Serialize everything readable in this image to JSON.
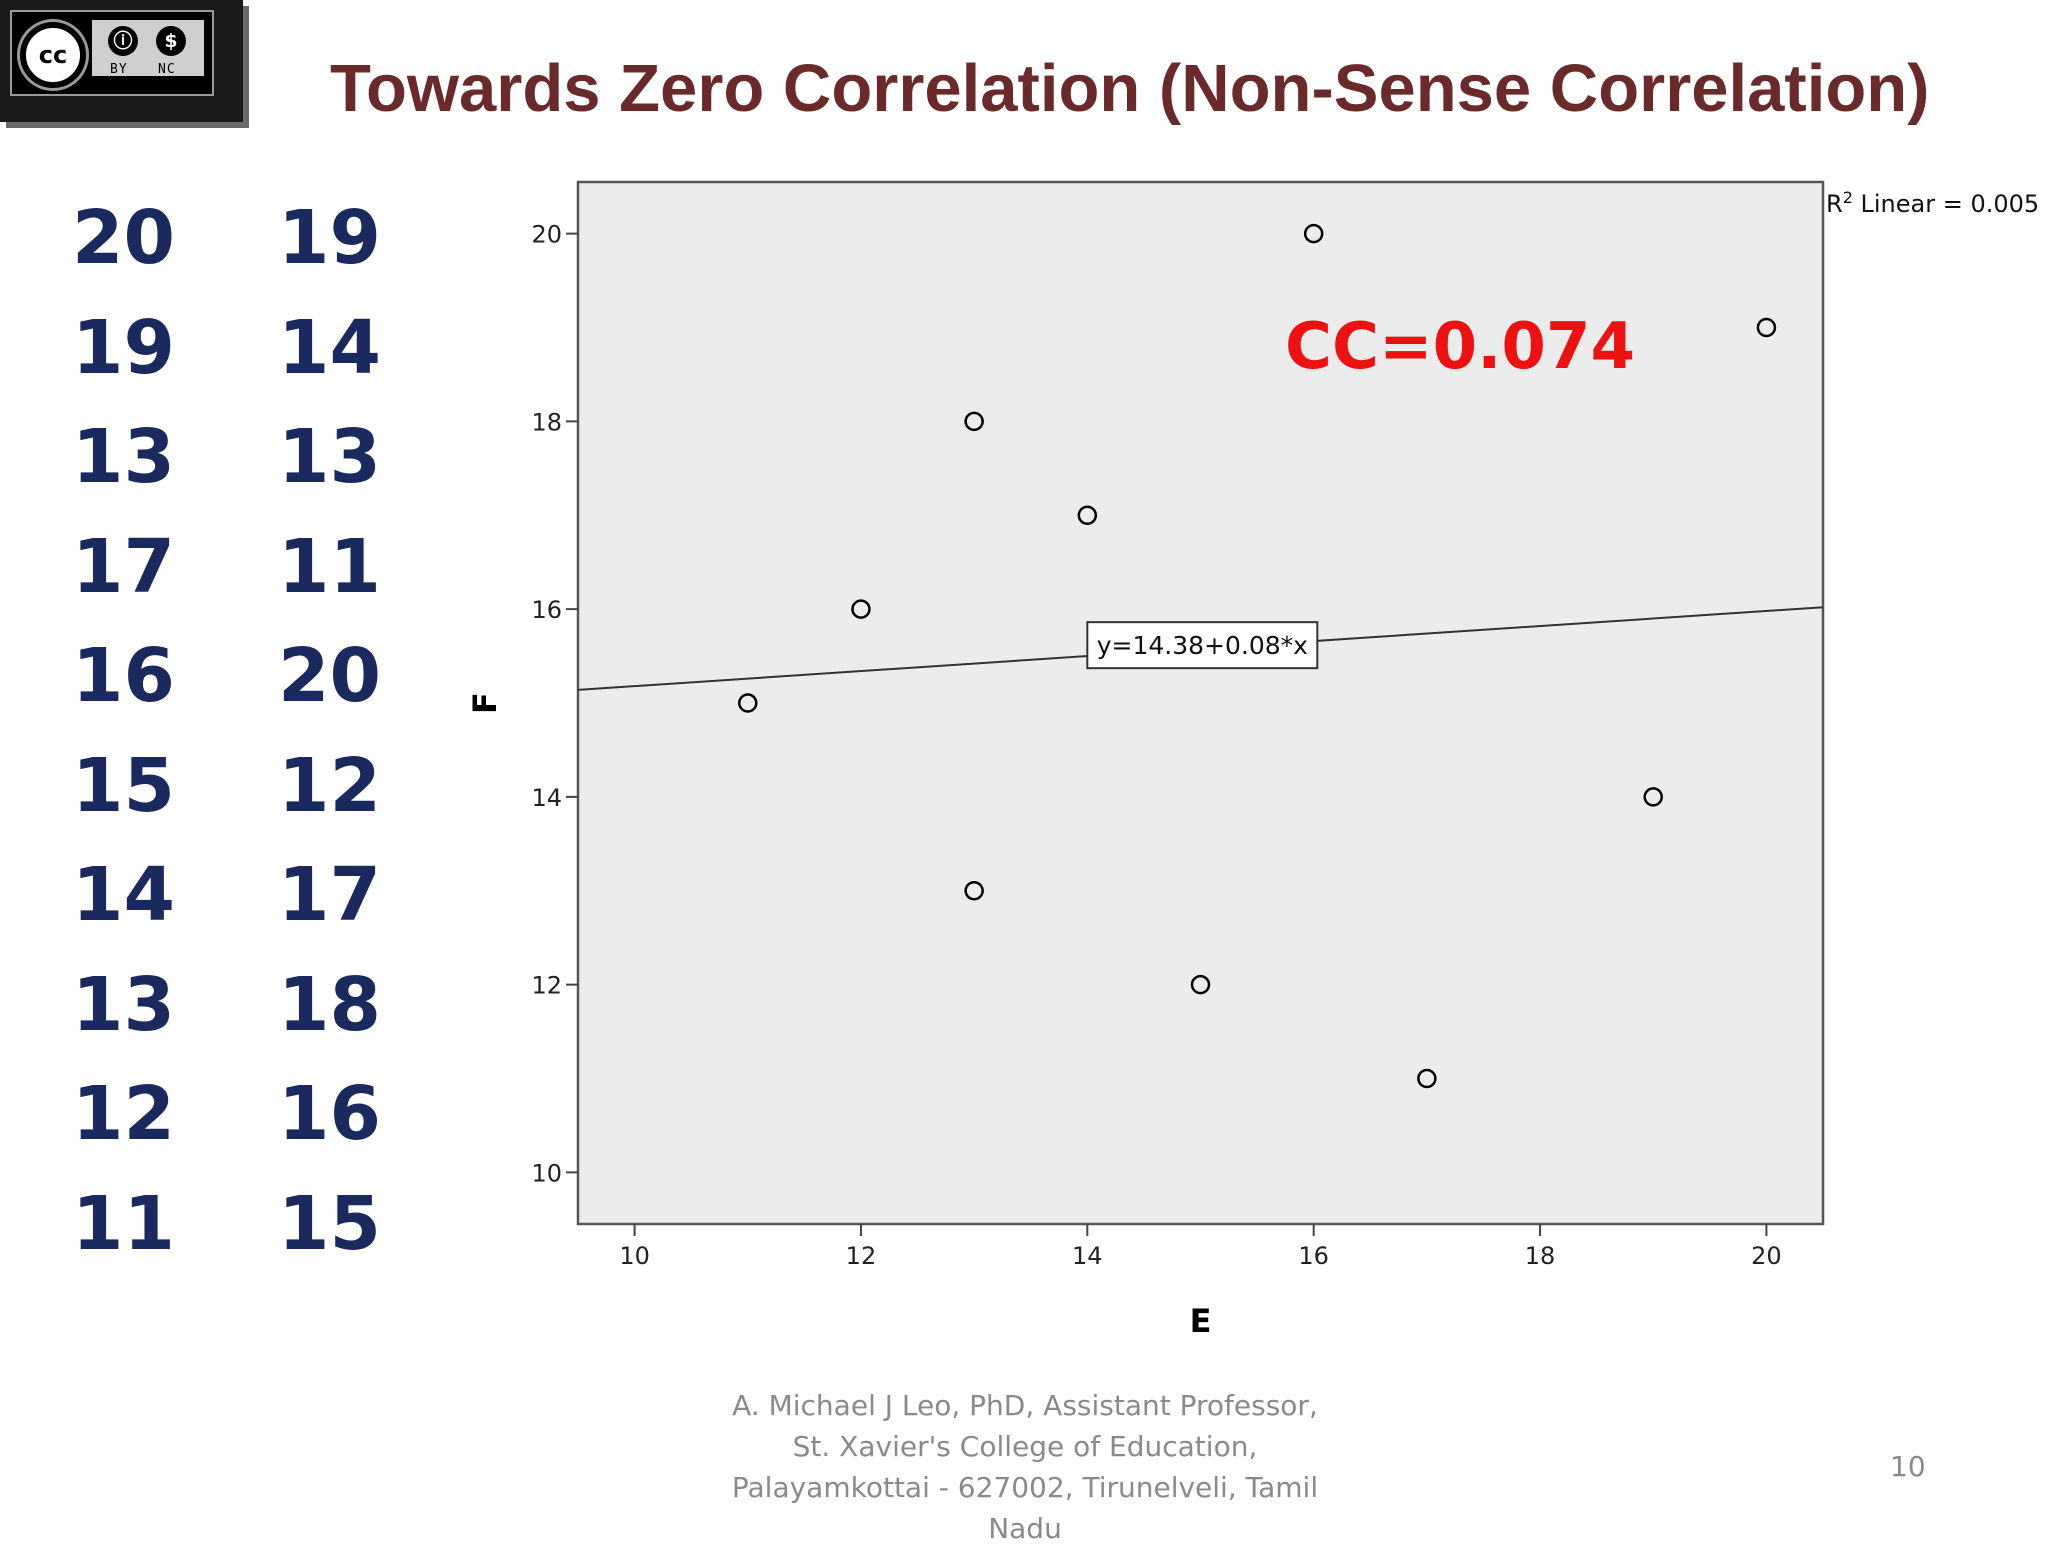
{
  "badge": {
    "cc_text": "cc",
    "by_label": "BY",
    "nc_label": "NC"
  },
  "title": "Towards Zero Correlation (Non-Sense Correlation)",
  "cc_label": "CC=0.074",
  "r2_label": {
    "prefix": "R",
    "sup": "2",
    "text": " Linear = 0.005"
  },
  "footer": {
    "lines": [
      "A. Michael J Leo, PhD, Assistant Professor,",
      "St. Xavier's College of Education,",
      "Palayamkottai - 627002, Tirunelveli, Tamil",
      "Nadu"
    ]
  },
  "page_number": "10",
  "chart_data": {
    "type": "scatter",
    "xlabel": "E",
    "ylabel": "F",
    "xlim": [
      9.5,
      20.5
    ],
    "ylim": [
      9.45,
      20.55
    ],
    "xticks": [
      10,
      12,
      14,
      16,
      18,
      20
    ],
    "yticks": [
      10,
      12,
      14,
      16,
      18,
      20
    ],
    "points": [
      {
        "x": 20,
        "y": 19
      },
      {
        "x": 19,
        "y": 14
      },
      {
        "x": 13,
        "y": 13
      },
      {
        "x": 17,
        "y": 11
      },
      {
        "x": 16,
        "y": 20
      },
      {
        "x": 15,
        "y": 12
      },
      {
        "x": 14,
        "y": 17
      },
      {
        "x": 13,
        "y": 18
      },
      {
        "x": 12,
        "y": 16
      },
      {
        "x": 11,
        "y": 15
      }
    ],
    "fit_line": {
      "intercept": 14.38,
      "slope": 0.08,
      "label": "y=14.38+0.08*x"
    },
    "colors": {
      "plot_bg": "#ececec",
      "marker": "#000000",
      "cc_text": "#ee1111"
    }
  }
}
